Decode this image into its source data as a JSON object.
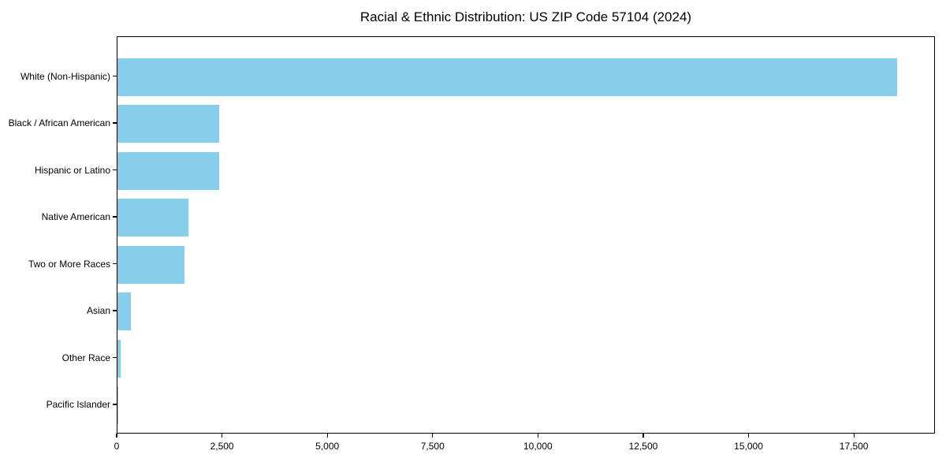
{
  "title": "Racial & Ethnic Distribution: US ZIP Code 57104 (2024)",
  "colors": {
    "bar": "#87CEEB",
    "axis": "#000000",
    "text": "#000000",
    "background": "#ffffff"
  },
  "chart_data": {
    "type": "bar",
    "orientation": "horizontal",
    "title": "Racial & Ethnic Distribution: US ZIP Code 57104 (2024)",
    "categories": [
      "White (Non-Hispanic)",
      "Black / African American",
      "Hispanic or Latino",
      "Native American",
      "Two or More Races",
      "Asian",
      "Other Race",
      "Pacific Islander"
    ],
    "values": [
      18500,
      2420,
      2410,
      1680,
      1590,
      310,
      75,
      10
    ],
    "xlabel": "",
    "ylabel": "",
    "xlim": [
      0,
      19425
    ],
    "x_ticks": [
      0,
      2500,
      5000,
      7500,
      10000,
      12500,
      15000,
      17500
    ],
    "x_tick_labels": [
      "0",
      "2,500",
      "5,000",
      "7,500",
      "10,000",
      "12,500",
      "15,000",
      "17,500"
    ],
    "bar_color": "#87CEEB",
    "grid": false,
    "legend": null
  }
}
